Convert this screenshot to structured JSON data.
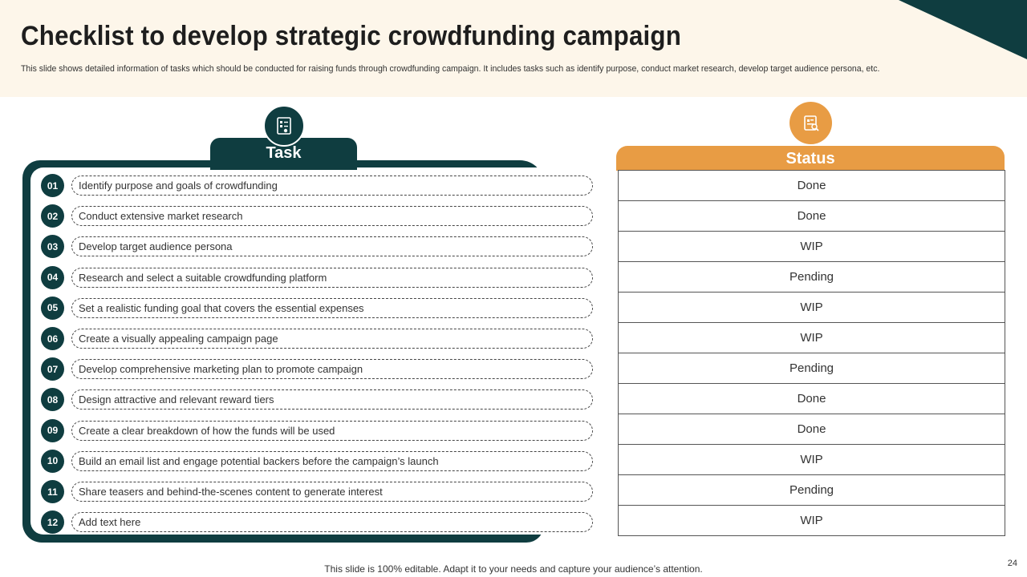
{
  "slide": {
    "title": "Checklist to develop strategic crowdfunding campaign",
    "subtitle": "This slide shows detailed information of tasks which should be conducted for raising funds through crowdfunding campaign. It includes tasks such as identify purpose, conduct market research, develop target audience persona, etc.",
    "footer": "This slide is 100% editable. Adapt it to your needs and capture your audience’s attention.",
    "page_number": "24"
  },
  "colors": {
    "teal": "#0f3d40",
    "orange": "#e89c44",
    "cream": "#fdf6ea"
  },
  "task_panel": {
    "header": "Task",
    "icon": "document-checklist-icon"
  },
  "status_panel": {
    "header": "Status",
    "icon": "report-search-icon"
  },
  "rows": [
    {
      "num": "01",
      "task": "Identify  purpose  and goals  of crowdfunding",
      "status": "Done"
    },
    {
      "num": "02",
      "task": "Conduct  extensive  market research",
      "status": "Done"
    },
    {
      "num": "03",
      "task": "Develop  target  audience  persona",
      "status": "WIP"
    },
    {
      "num": "04",
      "task": "Research  and select  a suitable  crowdfunding  platform",
      "status": "Pending"
    },
    {
      "num": "05",
      "task": "Set a realistic  funding  goal  that covers  the essential  expenses",
      "status": "WIP"
    },
    {
      "num": "06",
      "task": "Create  a visually  appealing  campaign  page",
      "status": "WIP"
    },
    {
      "num": "07",
      "task": "Develop  comprehensive   marketing  plan to promote  campaign",
      "status": "Pending"
    },
    {
      "num": "08",
      "task": "Design  attractive  and relevant  reward  tiers",
      "status": "Done"
    },
    {
      "num": "09",
      "task": "Create  a clear  breakdown  of how  the funds  will be used",
      "status": "Done"
    },
    {
      "num": "10",
      "task": "Build  an email  list and engage  potential  backers before  the campaign’s  launch",
      "status": "WIP"
    },
    {
      "num": "11",
      "task": "Share  teasers  and behind-the-scenes  content  to generate  interest",
      "status": "Pending"
    },
    {
      "num": "12",
      "task": "Add text here",
      "status": "WIP"
    }
  ]
}
